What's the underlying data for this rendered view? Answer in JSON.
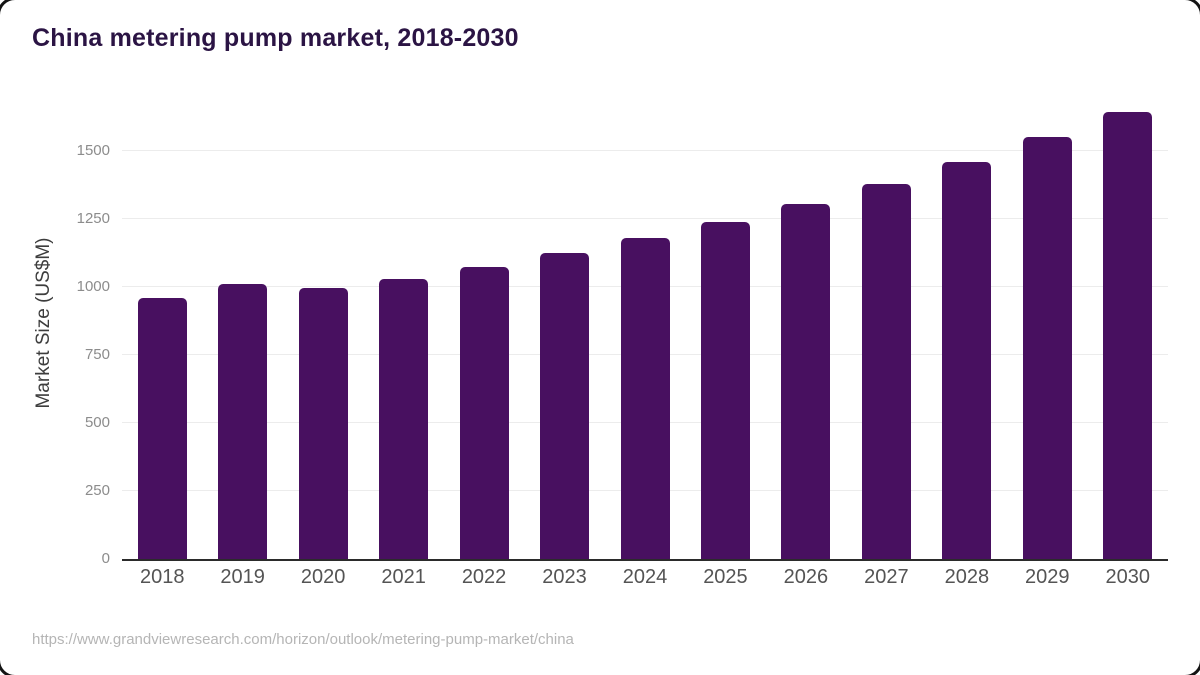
{
  "header": {
    "title": "China metering pump market, 2018-2030"
  },
  "chart_data": {
    "type": "bar",
    "title": "China metering pump market, 2018-2030",
    "categories": [
      "2018",
      "2019",
      "2020",
      "2021",
      "2022",
      "2023",
      "2024",
      "2025",
      "2026",
      "2027",
      "2028",
      "2029",
      "2030"
    ],
    "values": [
      960,
      1010,
      995,
      1030,
      1075,
      1125,
      1180,
      1240,
      1305,
      1380,
      1460,
      1550,
      1645
    ],
    "xlabel": "",
    "ylabel": "Market Size (US$M)",
    "yticks": [
      0,
      250,
      500,
      750,
      1000,
      1250,
      1500
    ],
    "ylim": [
      0,
      1690
    ],
    "grid": "horizontal-only",
    "legend": "none",
    "bar_color": "#481060"
  },
  "footer": {
    "source_url": "https://www.grandviewresearch.com/horizon/outlook/metering-pump-market/china"
  },
  "colors": {
    "bar": "#481060",
    "title_text": "#2b1444",
    "axis_line": "#2b2b2b",
    "gridline": "#ececec",
    "y_tick_text": "#8c8c8c",
    "x_tick_text": "#545454",
    "source_text": "#b5b5b5"
  }
}
